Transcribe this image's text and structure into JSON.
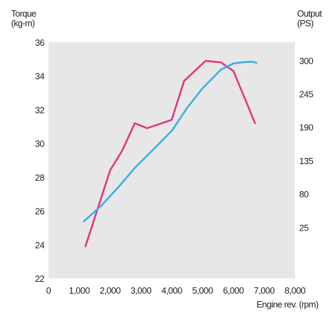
{
  "chart_data": {
    "type": "line",
    "y_left": {
      "title_lines": [
        "Torque",
        "(kg-m)"
      ],
      "ticks": [
        22,
        24,
        26,
        28,
        30,
        32,
        34,
        36
      ],
      "range": [
        22,
        36
      ]
    },
    "y_right": {
      "title_lines": [
        "Output",
        "(PS)"
      ],
      "ticks": [
        25,
        80,
        135,
        190,
        245,
        300
      ],
      "range": [
        -59,
        330
      ]
    },
    "x_axis": {
      "title": "Engine rev. (rpm)",
      "ticks": [
        0,
        1000,
        2000,
        3000,
        4000,
        5000,
        6000,
        7000,
        8000
      ],
      "tick_labels": [
        "0",
        "1,000",
        "2,000",
        "3,000",
        "4,000",
        "5,000",
        "6,000",
        "7,000",
        "8,000"
      ],
      "range": [
        0,
        8000
      ]
    },
    "colors": {
      "plot_bg": "#e7e7e8",
      "torque": "#e2357f",
      "output": "#3aaee3"
    },
    "series": [
      {
        "axis": "left",
        "color": "#e2357f",
        "points": [
          [
            1200,
            23.9
          ],
          [
            2000,
            28.4
          ],
          [
            2400,
            29.6
          ],
          [
            2800,
            31.2
          ],
          [
            3200,
            30.9
          ],
          [
            4000,
            31.4
          ],
          [
            4400,
            33.7
          ],
          [
            5100,
            34.9
          ],
          [
            5600,
            34.8
          ],
          [
            6000,
            34.3
          ],
          [
            6500,
            32.1
          ],
          [
            6700,
            31.2
          ]
        ]
      },
      {
        "axis": "right",
        "color": "#3aaee3",
        "points": [
          [
            1150,
            35
          ],
          [
            1700,
            60
          ],
          [
            2300,
            93
          ],
          [
            2800,
            123
          ],
          [
            3300,
            148
          ],
          [
            4000,
            184
          ],
          [
            4500,
            222
          ],
          [
            5000,
            254
          ],
          [
            5600,
            285
          ],
          [
            6000,
            295
          ],
          [
            6300,
            297
          ],
          [
            6600,
            298
          ],
          [
            6750,
            296
          ]
        ]
      }
    ]
  }
}
